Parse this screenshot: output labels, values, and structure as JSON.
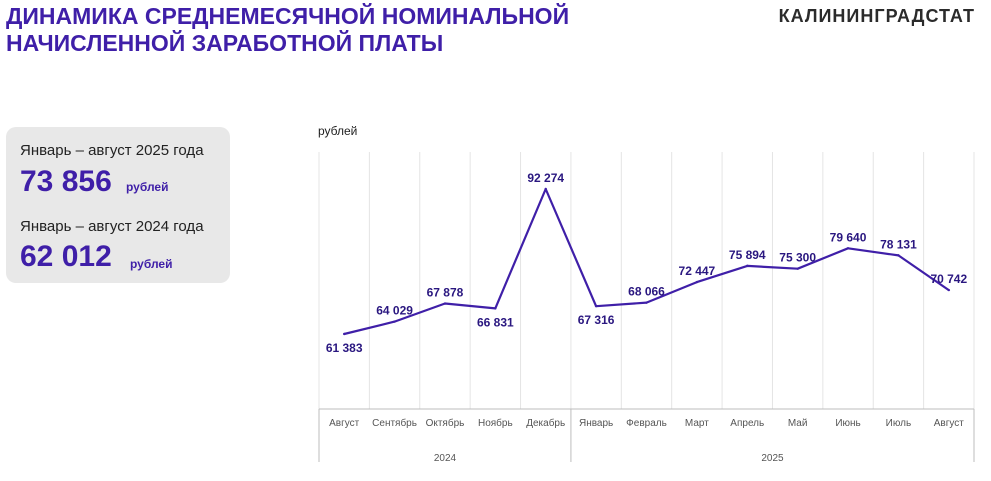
{
  "header": {
    "title_line1": "ДИНАМИКА СРЕДНЕМЕСЯЧНОЙ НОМИНАЛЬНОЙ",
    "title_line2": "НАЧИСЛЕННОЙ ЗАРАБОТНОЙ ПЛАТЫ",
    "brand": "КАЛИНИНГРАДСТАТ"
  },
  "summary": {
    "items": [
      {
        "label": "Январь – август 2025 года",
        "value": "73 856",
        "unit": "рублей"
      },
      {
        "label": "Январь – август 2024 года",
        "value": "62 012",
        "unit": "рублей"
      }
    ]
  },
  "colors": {
    "accent": "#3f1fa8",
    "line": "#3f1fa8",
    "grid": "#e4e4e4",
    "panel": "#e8e8e8"
  },
  "chart_data": {
    "type": "line",
    "ylabel": "рублей",
    "categories": [
      "Август",
      "Сентябрь",
      "Октябрь",
      "Ноябрь",
      "Декабрь",
      "Январь",
      "Февраль",
      "Март",
      "Апрель",
      "Май",
      "Июнь",
      "Июль",
      "Август"
    ],
    "values": [
      61383,
      64029,
      67878,
      66831,
      92274,
      67316,
      68066,
      72447,
      75894,
      75300,
      79640,
      78131,
      70742
    ],
    "labels": [
      "61 383",
      "64 029",
      "67 878",
      "66 831",
      "92 274",
      "67 316",
      "68 066",
      "72 447",
      "75 894",
      "75 300",
      "79 640",
      "78 131",
      "70 742"
    ],
    "label_positions": [
      "below",
      "above",
      "above",
      "below",
      "above",
      "below",
      "above",
      "above",
      "above",
      "above",
      "above",
      "above",
      "above"
    ],
    "year_groups": [
      {
        "label": "2024",
        "count": 5
      },
      {
        "label": "2025",
        "count": 8
      }
    ],
    "ylim": [
      40000,
      100000
    ],
    "grid": "vertical"
  }
}
